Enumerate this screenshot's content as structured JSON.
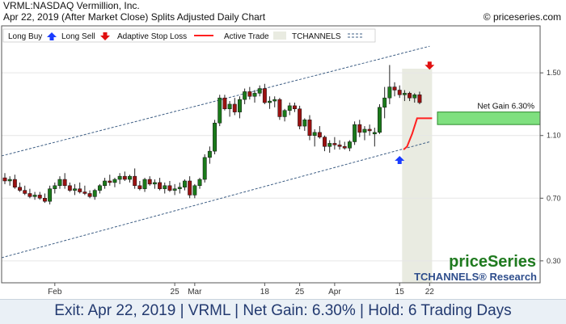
{
  "header": {
    "symbol_line": "VRML:NASDAQ Vermillion, Inc.",
    "date_line": "Apr 22, 2019 (After Market Close)  Splits Adjusted Daily Chart",
    "copyright": "© priceseries.com"
  },
  "legend": {
    "long_buy": "Long Buy",
    "long_sell": "Long Sell",
    "adaptive_stop": "Adaptive Stop Loss",
    "active_trade": "Active Trade",
    "tchannels": "TCHANNELS"
  },
  "annotations": {
    "net_gain_label": "Net Gain 6.30%"
  },
  "branding": {
    "logo": "priceSeries",
    "tchannels_research": "TCHANNELS® Research"
  },
  "footer": {
    "text": "Exit: Apr 22, 2019 | VRML | Net Gain: 6.30% | Hold: 6 Trading Days"
  },
  "colors": {
    "up_candle": "#1a7a1a",
    "down_candle": "#9b1111",
    "stop_line": "#ff2020",
    "net_gain_box": "#7fe07f",
    "buy_arrow": "#1a3cff",
    "sell_arrow": "#e01010",
    "active_trade_bg": "#e9ebe1"
  },
  "chart_data": {
    "type": "candlestick",
    "y_ticks": [
      0.3,
      0.7,
      1.1,
      1.5
    ],
    "ylim": [
      0.16,
      1.8
    ],
    "x_labels": [
      {
        "label": "Feb",
        "index": 10
      },
      {
        "label": "25",
        "index": 34
      },
      {
        "label": "Mar",
        "index": 38
      },
      {
        "label": "18",
        "index": 52
      },
      {
        "label": "25",
        "index": 59
      },
      {
        "label": "Apr",
        "index": 66
      },
      {
        "label": "15",
        "index": 79
      },
      {
        "label": "22",
        "index": 85
      }
    ],
    "candles": [
      [
        0.83,
        0.86,
        0.79,
        0.81
      ],
      [
        0.81,
        0.84,
        0.78,
        0.82
      ],
      [
        0.82,
        0.85,
        0.76,
        0.77
      ],
      [
        0.77,
        0.8,
        0.74,
        0.75
      ],
      [
        0.75,
        0.78,
        0.72,
        0.73
      ],
      [
        0.73,
        0.76,
        0.7,
        0.71
      ],
      [
        0.71,
        0.74,
        0.69,
        0.72
      ],
      [
        0.72,
        0.74,
        0.69,
        0.7
      ],
      [
        0.7,
        0.73,
        0.67,
        0.68
      ],
      [
        0.68,
        0.78,
        0.66,
        0.76
      ],
      [
        0.76,
        0.8,
        0.73,
        0.78
      ],
      [
        0.78,
        0.84,
        0.76,
        0.82
      ],
      [
        0.82,
        0.86,
        0.76,
        0.78
      ],
      [
        0.78,
        0.8,
        0.74,
        0.75
      ],
      [
        0.75,
        0.79,
        0.72,
        0.76
      ],
      [
        0.76,
        0.8,
        0.73,
        0.74
      ],
      [
        0.74,
        0.78,
        0.72,
        0.73
      ],
      [
        0.73,
        0.75,
        0.7,
        0.71
      ],
      [
        0.71,
        0.76,
        0.69,
        0.75
      ],
      [
        0.75,
        0.79,
        0.73,
        0.78
      ],
      [
        0.78,
        0.83,
        0.76,
        0.81
      ],
      [
        0.81,
        0.85,
        0.78,
        0.8
      ],
      [
        0.8,
        0.83,
        0.77,
        0.82
      ],
      [
        0.82,
        0.86,
        0.79,
        0.84
      ],
      [
        0.84,
        0.87,
        0.81,
        0.82
      ],
      [
        0.82,
        0.85,
        0.8,
        0.84
      ],
      [
        0.84,
        0.89,
        0.76,
        0.78
      ],
      [
        0.78,
        0.81,
        0.75,
        0.76
      ],
      [
        0.76,
        0.83,
        0.74,
        0.82
      ],
      [
        0.82,
        0.84,
        0.78,
        0.79
      ],
      [
        0.79,
        0.82,
        0.76,
        0.8
      ],
      [
        0.8,
        0.83,
        0.75,
        0.76
      ],
      [
        0.76,
        0.8,
        0.73,
        0.78
      ],
      [
        0.78,
        0.81,
        0.74,
        0.75
      ],
      [
        0.75,
        0.79,
        0.72,
        0.76
      ],
      [
        0.76,
        0.8,
        0.73,
        0.77
      ],
      [
        0.77,
        0.82,
        0.75,
        0.81
      ],
      [
        0.81,
        0.84,
        0.7,
        0.72
      ],
      [
        0.72,
        0.79,
        0.7,
        0.78
      ],
      [
        0.78,
        0.83,
        0.76,
        0.82
      ],
      [
        0.82,
        0.98,
        0.8,
        0.96
      ],
      [
        0.96,
        1.03,
        0.92,
        1.0
      ],
      [
        1.0,
        1.2,
        0.98,
        1.18
      ],
      [
        1.18,
        1.36,
        1.16,
        1.34
      ],
      [
        1.34,
        1.36,
        1.26,
        1.27
      ],
      [
        1.27,
        1.32,
        1.22,
        1.3
      ],
      [
        1.3,
        1.34,
        1.23,
        1.25
      ],
      [
        1.25,
        1.35,
        1.21,
        1.33
      ],
      [
        1.33,
        1.4,
        1.3,
        1.38
      ],
      [
        1.38,
        1.41,
        1.33,
        1.35
      ],
      [
        1.35,
        1.39,
        1.31,
        1.37
      ],
      [
        1.37,
        1.42,
        1.35,
        1.4
      ],
      [
        1.4,
        1.43,
        1.3,
        1.31
      ],
      [
        1.31,
        1.35,
        1.27,
        1.32
      ],
      [
        1.32,
        1.35,
        1.28,
        1.33
      ],
      [
        1.33,
        1.34,
        1.2,
        1.22
      ],
      [
        1.22,
        1.27,
        1.19,
        1.26
      ],
      [
        1.26,
        1.31,
        1.23,
        1.29
      ],
      [
        1.29,
        1.31,
        1.25,
        1.27
      ],
      [
        1.27,
        1.29,
        1.14,
        1.16
      ],
      [
        1.16,
        1.21,
        1.13,
        1.2
      ],
      [
        1.2,
        1.23,
        1.07,
        1.1
      ],
      [
        1.1,
        1.14,
        1.03,
        1.12
      ],
      [
        1.12,
        1.16,
        1.08,
        1.09
      ],
      [
        1.09,
        1.1,
        1.0,
        1.03
      ],
      [
        1.03,
        1.07,
        0.99,
        1.05
      ],
      [
        1.05,
        1.09,
        1.01,
        1.04
      ],
      [
        1.04,
        1.07,
        1.01,
        1.03
      ],
      [
        1.03,
        1.06,
        1.01,
        1.02
      ],
      [
        1.02,
        1.07,
        1.0,
        1.06
      ],
      [
        1.06,
        1.19,
        1.04,
        1.17
      ],
      [
        1.17,
        1.2,
        1.09,
        1.12
      ],
      [
        1.12,
        1.16,
        1.07,
        1.14
      ],
      [
        1.14,
        1.17,
        1.1,
        1.13
      ],
      [
        1.11,
        1.15,
        1.03,
        1.12
      ],
      [
        1.12,
        1.3,
        1.11,
        1.28
      ],
      [
        1.28,
        1.41,
        1.21,
        1.34
      ],
      [
        1.34,
        1.55,
        1.3,
        1.41
      ],
      [
        1.41,
        1.44,
        1.35,
        1.39
      ],
      [
        1.39,
        1.42,
        1.34,
        1.36
      ],
      [
        1.36,
        1.39,
        1.32,
        1.37
      ],
      [
        1.37,
        1.38,
        1.32,
        1.34
      ],
      [
        1.34,
        1.37,
        1.31,
        1.36
      ],
      [
        1.36,
        1.38,
        1.3,
        1.31
      ]
    ],
    "channel": {
      "upper": {
        "from": [
          0,
          0.97
        ],
        "to": [
          85,
          1.67
        ]
      },
      "lower": {
        "from": [
          0,
          0.32
        ],
        "to": [
          85,
          1.06
        ]
      }
    },
    "active_trade_range": [
      79.5,
      85.5
    ],
    "adaptive_stop": [
      [
        79.8,
        1.01
      ],
      [
        80.5,
        1.03
      ],
      [
        81.5,
        1.11
      ],
      [
        82.5,
        1.21
      ],
      [
        85.5,
        1.21
      ]
    ],
    "long_buy": {
      "index": 79,
      "price": 0.97
    },
    "long_sell": {
      "index": 85,
      "price": 1.52
    },
    "net_gain_box": {
      "low": 1.17,
      "high": 1.25
    }
  }
}
